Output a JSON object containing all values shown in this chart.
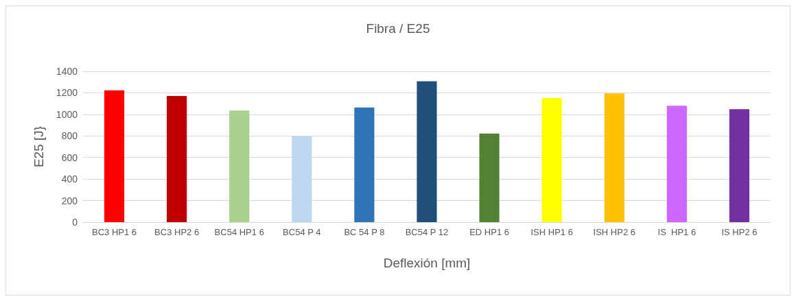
{
  "chart_data": {
    "type": "bar",
    "title": "Fibra / E25",
    "xlabel": "Deflexión [mm]",
    "ylabel": "E25 [J}",
    "categories": [
      "BC3 HP1 6",
      "BC3 HP2 6",
      "BC54 HP1 6",
      "BC54 P 4",
      "BC 54 P 8",
      "BC54 P 12",
      "ED HP1 6",
      "ISH HP1 6",
      "ISH HP2 6",
      "IS  HP1 6",
      "IS HP2 6"
    ],
    "values": [
      1224,
      1171,
      1035,
      800,
      1064,
      1307,
      822,
      1152,
      1195,
      1081,
      1049
    ],
    "colors": [
      "#ff0000",
      "#c00000",
      "#a9d18e",
      "#bdd7ee",
      "#2e75b6",
      "#1f4e79",
      "#548235",
      "#ffff00",
      "#ffc000",
      "#cc66ff",
      "#7030a0"
    ],
    "ylim": [
      0,
      1400
    ],
    "yticks": [
      0,
      200,
      400,
      600,
      800,
      1000,
      1200,
      1400
    ],
    "grid": "y"
  }
}
